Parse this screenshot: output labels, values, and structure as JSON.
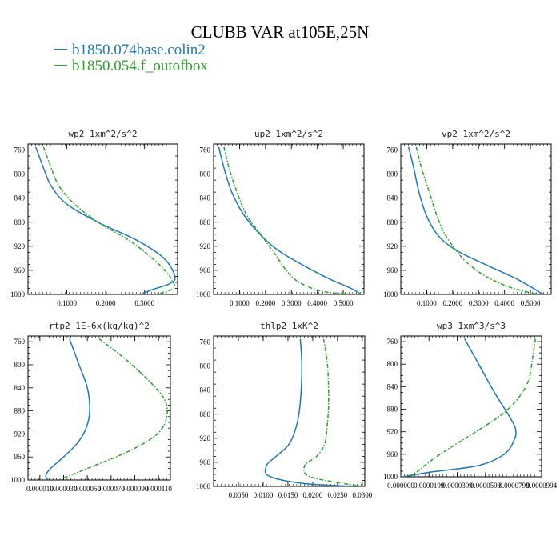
{
  "title": "CLUBB VAR at105E,25N",
  "legend": [
    {
      "label": "b1850.074base.colin2",
      "color": "#1f77b4"
    },
    {
      "label": "b1850.054.f_outofbox",
      "color": "#2ca02c"
    }
  ],
  "chart_data": [
    {
      "type": "line",
      "title": "wp2  1xm^2/s^2",
      "xlim": [
        0.0,
        0.385
      ],
      "ylim": [
        1000,
        750
      ],
      "yticks": [
        "760",
        "800",
        "840",
        "880",
        "920",
        "960",
        "1000"
      ],
      "xticks": [
        {
          "v": 0.1,
          "label": "0.1000"
        },
        {
          "v": 0.2,
          "label": "0.2000"
        },
        {
          "v": 0.3,
          "label": "0.3000"
        }
      ],
      "series": [
        {
          "style": "solid",
          "color": "#1f77b4",
          "x": [
            0.02,
            0.04,
            0.06,
            0.1,
            0.18,
            0.28,
            0.35,
            0.378,
            0.365,
            0.32,
            0.29
          ],
          "y": [
            755,
            790,
            820,
            850,
            880,
            910,
            940,
            970,
            982,
            992,
            1000
          ]
        },
        {
          "style": "dashed",
          "color": "#2ca02c",
          "x": [
            0.04,
            0.06,
            0.08,
            0.12,
            0.18,
            0.26,
            0.32,
            0.355,
            0.37,
            0.375,
            0.33
          ],
          "y": [
            755,
            790,
            820,
            850,
            880,
            910,
            940,
            962,
            976,
            990,
            1000
          ]
        }
      ]
    },
    {
      "type": "line",
      "title": "up2  1xm^2/s^2",
      "xlim": [
        0.0,
        0.58
      ],
      "ylim": [
        1000,
        750
      ],
      "yticks": [
        "760",
        "800",
        "840",
        "880",
        "920",
        "960",
        "1000"
      ],
      "xticks": [
        {
          "v": 0.1,
          "label": "0.1000"
        },
        {
          "v": 0.2,
          "label": "0.2000"
        },
        {
          "v": 0.3,
          "label": "0.3000"
        },
        {
          "v": 0.4,
          "label": "0.4000"
        },
        {
          "v": 0.5,
          "label": "0.5000"
        }
      ],
      "series": [
        {
          "style": "solid",
          "color": "#1f77b4",
          "x": [
            0.02,
            0.04,
            0.07,
            0.12,
            0.19,
            0.26,
            0.36,
            0.45,
            0.53,
            0.57
          ],
          "y": [
            755,
            790,
            830,
            870,
            905,
            930,
            955,
            975,
            990,
            1000
          ]
        },
        {
          "style": "dashed",
          "color": "#2ca02c",
          "x": [
            0.04,
            0.06,
            0.09,
            0.13,
            0.19,
            0.24,
            0.28,
            0.33,
            0.42,
            0.54
          ],
          "y": [
            755,
            790,
            830,
            870,
            905,
            935,
            960,
            980,
            995,
            1000
          ]
        }
      ]
    },
    {
      "type": "line",
      "title": "vp2  1xm^2/s^2",
      "xlim": [
        0.0,
        0.58
      ],
      "ylim": [
        1000,
        750
      ],
      "yticks": [
        "760",
        "800",
        "840",
        "880",
        "920",
        "960",
        "1000"
      ],
      "xticks": [
        {
          "v": 0.1,
          "label": "0.1000"
        },
        {
          "v": 0.2,
          "label": "0.2000"
        },
        {
          "v": 0.3,
          "label": "0.3000"
        },
        {
          "v": 0.4,
          "label": "0.4000"
        },
        {
          "v": 0.5,
          "label": "0.5000"
        }
      ],
      "series": [
        {
          "style": "solid",
          "color": "#1f77b4",
          "x": [
            0.03,
            0.05,
            0.07,
            0.1,
            0.14,
            0.19,
            0.25,
            0.35,
            0.45,
            0.55
          ],
          "y": [
            755,
            790,
            830,
            870,
            900,
            920,
            935,
            955,
            975,
            1000
          ]
        },
        {
          "style": "dashed",
          "color": "#2ca02c",
          "x": [
            0.06,
            0.08,
            0.11,
            0.14,
            0.17,
            0.21,
            0.25,
            0.32,
            0.42,
            0.53
          ],
          "y": [
            755,
            790,
            830,
            870,
            900,
            925,
            945,
            968,
            988,
            1000
          ]
        }
      ]
    },
    {
      "type": "line",
      "title": "rtp2  1E-6x(kg/kg)^2",
      "xlim": [
        0.0,
        0.00012
      ],
      "ylim": [
        1000,
        750
      ],
      "yticks": [
        "760",
        "800",
        "840",
        "880",
        "920",
        "960",
        "1000"
      ],
      "xticks": [
        {
          "v": 1e-05,
          "label": "0.000010"
        },
        {
          "v": 3e-05,
          "label": "0.000030"
        },
        {
          "v": 5e-05,
          "label": "0.000050"
        },
        {
          "v": 7e-05,
          "label": "0.000070"
        },
        {
          "v": 9e-05,
          "label": "0.000090"
        },
        {
          "v": 0.00011,
          "label": "0.000110"
        }
      ],
      "series": [
        {
          "style": "solid",
          "color": "#1f77b4",
          "x": [
            3.5e-05,
            4.3e-05,
            5e-05,
            5.2e-05,
            4.9e-05,
            4.2e-05,
            3e-05,
            1.9e-05,
            1.5e-05,
            1.7e-05
          ],
          "y": [
            755,
            800,
            840,
            880,
            910,
            935,
            960,
            980,
            992,
            1000
          ]
        },
        {
          "style": "dashed",
          "color": "#2ca02c",
          "x": [
            6e-05,
            8.2e-05,
            0.000103,
            0.000115,
            0.000117,
            0.000109,
            8.5e-05,
            5e-05,
            3.2e-05,
            2.8e-05
          ],
          "y": [
            755,
            790,
            830,
            860,
            890,
            920,
            950,
            980,
            995,
            1000
          ]
        }
      ]
    },
    {
      "type": "line",
      "title": "thlp2  1xK^2",
      "xlim": [
        0.0,
        0.0305
      ],
      "ylim": [
        1000,
        750
      ],
      "yticks": [
        "760",
        "800",
        "840",
        "880",
        "920",
        "960",
        "1000"
      ],
      "xticks": [
        {
          "v": 0.005,
          "label": "0.0050"
        },
        {
          "v": 0.01,
          "label": "0.0100"
        },
        {
          "v": 0.015,
          "label": "0.0150"
        },
        {
          "v": 0.02,
          "label": "0.0200"
        },
        {
          "v": 0.025,
          "label": "0.0250"
        },
        {
          "v": 0.03,
          "label": "0.0300"
        }
      ],
      "series": [
        {
          "style": "solid",
          "color": "#1f77b4",
          "x": [
            0.0175,
            0.0178,
            0.0175,
            0.0167,
            0.0152,
            0.0126,
            0.0107,
            0.0112,
            0.018,
            0.028
          ],
          "y": [
            755,
            800,
            860,
            900,
            930,
            950,
            965,
            983,
            995,
            1000
          ]
        },
        {
          "style": "dashed",
          "color": "#2ca02c",
          "x": [
            0.0222,
            0.023,
            0.0232,
            0.0229,
            0.0224,
            0.0208,
            0.0184,
            0.0192,
            0.026,
            0.0302
          ],
          "y": [
            755,
            800,
            860,
            900,
            930,
            950,
            965,
            983,
            995,
            1000
          ]
        }
      ]
    },
    {
      "type": "line",
      "title": "wp3  1xm^3/s^3",
      "xlim": [
        0.0,
        9.94e-05
      ],
      "ylim": [
        1000,
        750
      ],
      "yticks": [
        "760",
        "800",
        "840",
        "880",
        "920",
        "960",
        "1000"
      ],
      "xticks": [
        {
          "v": 0.0,
          "label": "0.000000"
        },
        {
          "v": 1.99e-05,
          "label": "0.0000199"
        },
        {
          "v": 3.99e-05,
          "label": "0.0000399"
        },
        {
          "v": 5.99e-05,
          "label": "0.0000599"
        },
        {
          "v": 7.99e-05,
          "label": "0.0000799"
        },
        {
          "v": 9.94e-05,
          "label": "0.0000994"
        }
      ],
      "series": [
        {
          "style": "solid",
          "color": "#1f77b4",
          "x": [
            4.5e-05,
            5.5e-05,
            6.6e-05,
            7.6e-05,
            8.1e-05,
            8e-05,
            7.3e-05,
            5.5e-05,
            2e-05,
            2e-06
          ],
          "y": [
            755,
            800,
            850,
            890,
            915,
            935,
            960,
            980,
            992,
            1000
          ]
        },
        {
          "style": "dashed",
          "color": "#2ca02c",
          "x": [
            9.5e-05,
            9.3e-05,
            9e-05,
            8.3e-05,
            7.1e-05,
            5.3e-05,
            3.7e-05,
            2.2e-05,
            1.2e-05,
            5e-06
          ],
          "y": [
            755,
            790,
            830,
            860,
            890,
            920,
            945,
            970,
            990,
            1000
          ]
        }
      ]
    }
  ]
}
